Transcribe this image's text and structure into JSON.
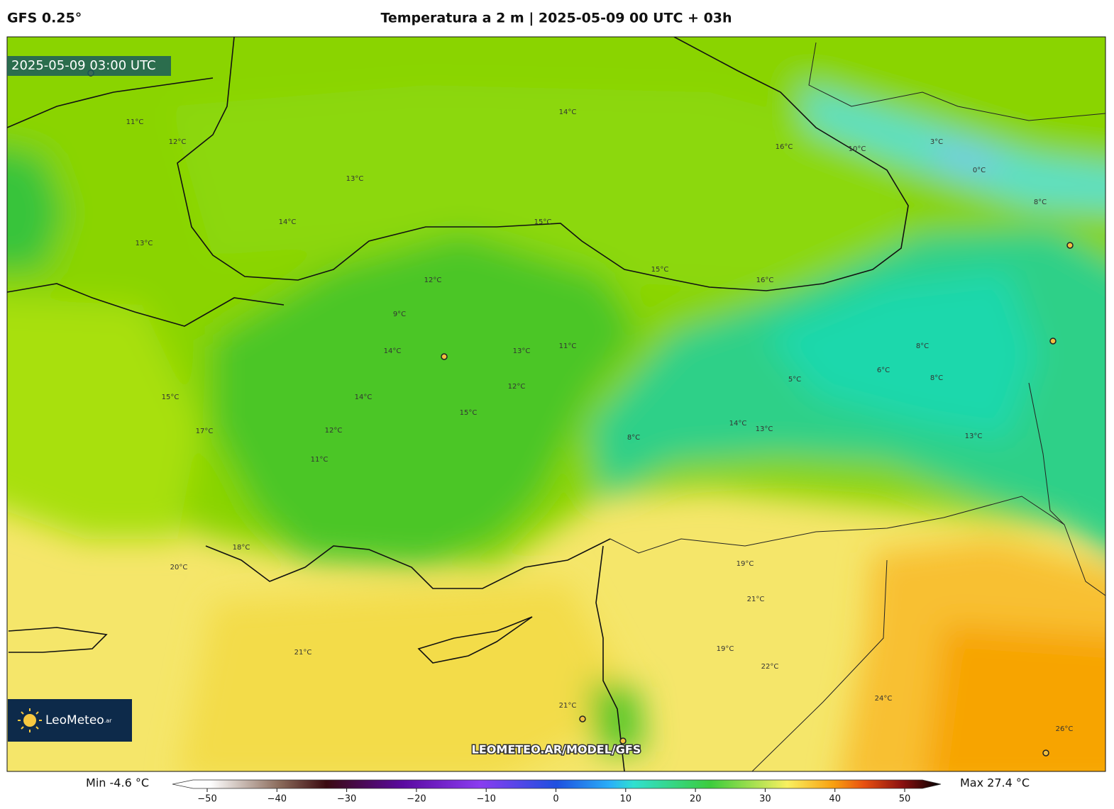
{
  "header": {
    "model": "GFS 0.25°",
    "title": "Temperatura a 2 m | 2025-05-09 00 UTC + 03h"
  },
  "map": {
    "timestamp": "2025-05-09 03:00 UTC",
    "watermark": "LEOMETEO.AR/MODEL/GFS",
    "logo": "LeoMeteo",
    "logo_suffix": ".ar",
    "contour_labels": [
      "11°C",
      "12°C",
      "13°C",
      "14°C",
      "13°C",
      "14°C",
      "16°C",
      "15°C",
      "15°C",
      "16°C",
      "12°C",
      "9°C",
      "11°C",
      "14°C",
      "13°C",
      "12°C",
      "14°C",
      "15°C",
      "12°C",
      "11°C",
      "8°C",
      "14°C",
      "13°C",
      "8°C",
      "6°C",
      "5°C",
      "8°C",
      "13°C",
      "19°C",
      "21°C",
      "22°C",
      "24°C",
      "26°C",
      "19°C",
      "21°C",
      "21°C",
      "18°C",
      "20°C",
      "17°C",
      "15°C",
      "3°C",
      "0°C",
      "8°C",
      "10°C"
    ]
  },
  "colorbar": {
    "min_label": "Min -4.6 °C",
    "max_label": "Max 27.4 °C",
    "ticks": [
      {
        "value": -50,
        "label": "−50"
      },
      {
        "value": -40,
        "label": "−40"
      },
      {
        "value": -30,
        "label": "−30"
      },
      {
        "value": -20,
        "label": "−20"
      },
      {
        "value": -10,
        "label": "−10"
      },
      0,
      10,
      20,
      30,
      40,
      50
    ]
  }
}
